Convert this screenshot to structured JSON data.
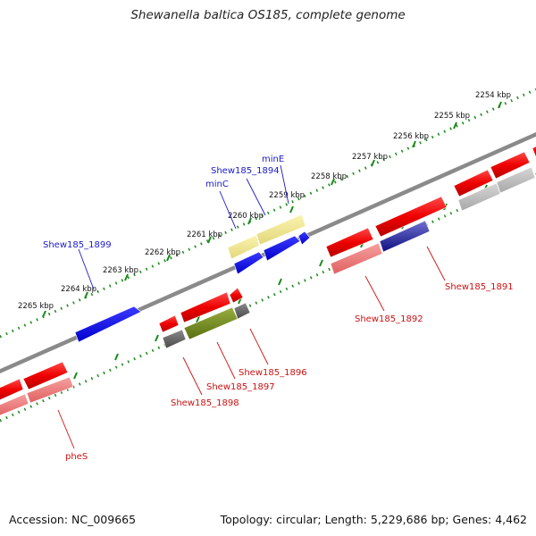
{
  "title": "Shewanella baltica OS185, complete genome",
  "footer": {
    "accession": "Accession: NC_009665",
    "summary": "Topology: circular; Length: 5,229,686 bp; Genes: 4,462"
  },
  "ticks": [
    "2254 kbp",
    "2255 kbp",
    "2256 kbp",
    "2257 kbp",
    "2258 kbp",
    "2259 kbp",
    "2260 kbp",
    "2261 kbp",
    "2262 kbp",
    "2263 kbp",
    "2264 kbp",
    "2265 kbp"
  ],
  "gene_labels": {
    "minE": "minE",
    "shew1894": "Shew185_1894",
    "minC": "minC",
    "shew1899": "Shew185_1899",
    "shew1891": "Shew185_1891",
    "shew1892": "Shew185_1892",
    "shew1896": "Shew185_1896",
    "shew1897": "Shew185_1897",
    "shew1898": "Shew185_1898",
    "pheS": "pheS"
  },
  "colors": {
    "forward_cds": "#0000ff",
    "reverse_cds": "#ff0000",
    "forward_label": "#1a1acc",
    "reverse_label": "#cc1111",
    "tick_green": "#1a8a1a",
    "backbone": "#8a8a8a"
  }
}
